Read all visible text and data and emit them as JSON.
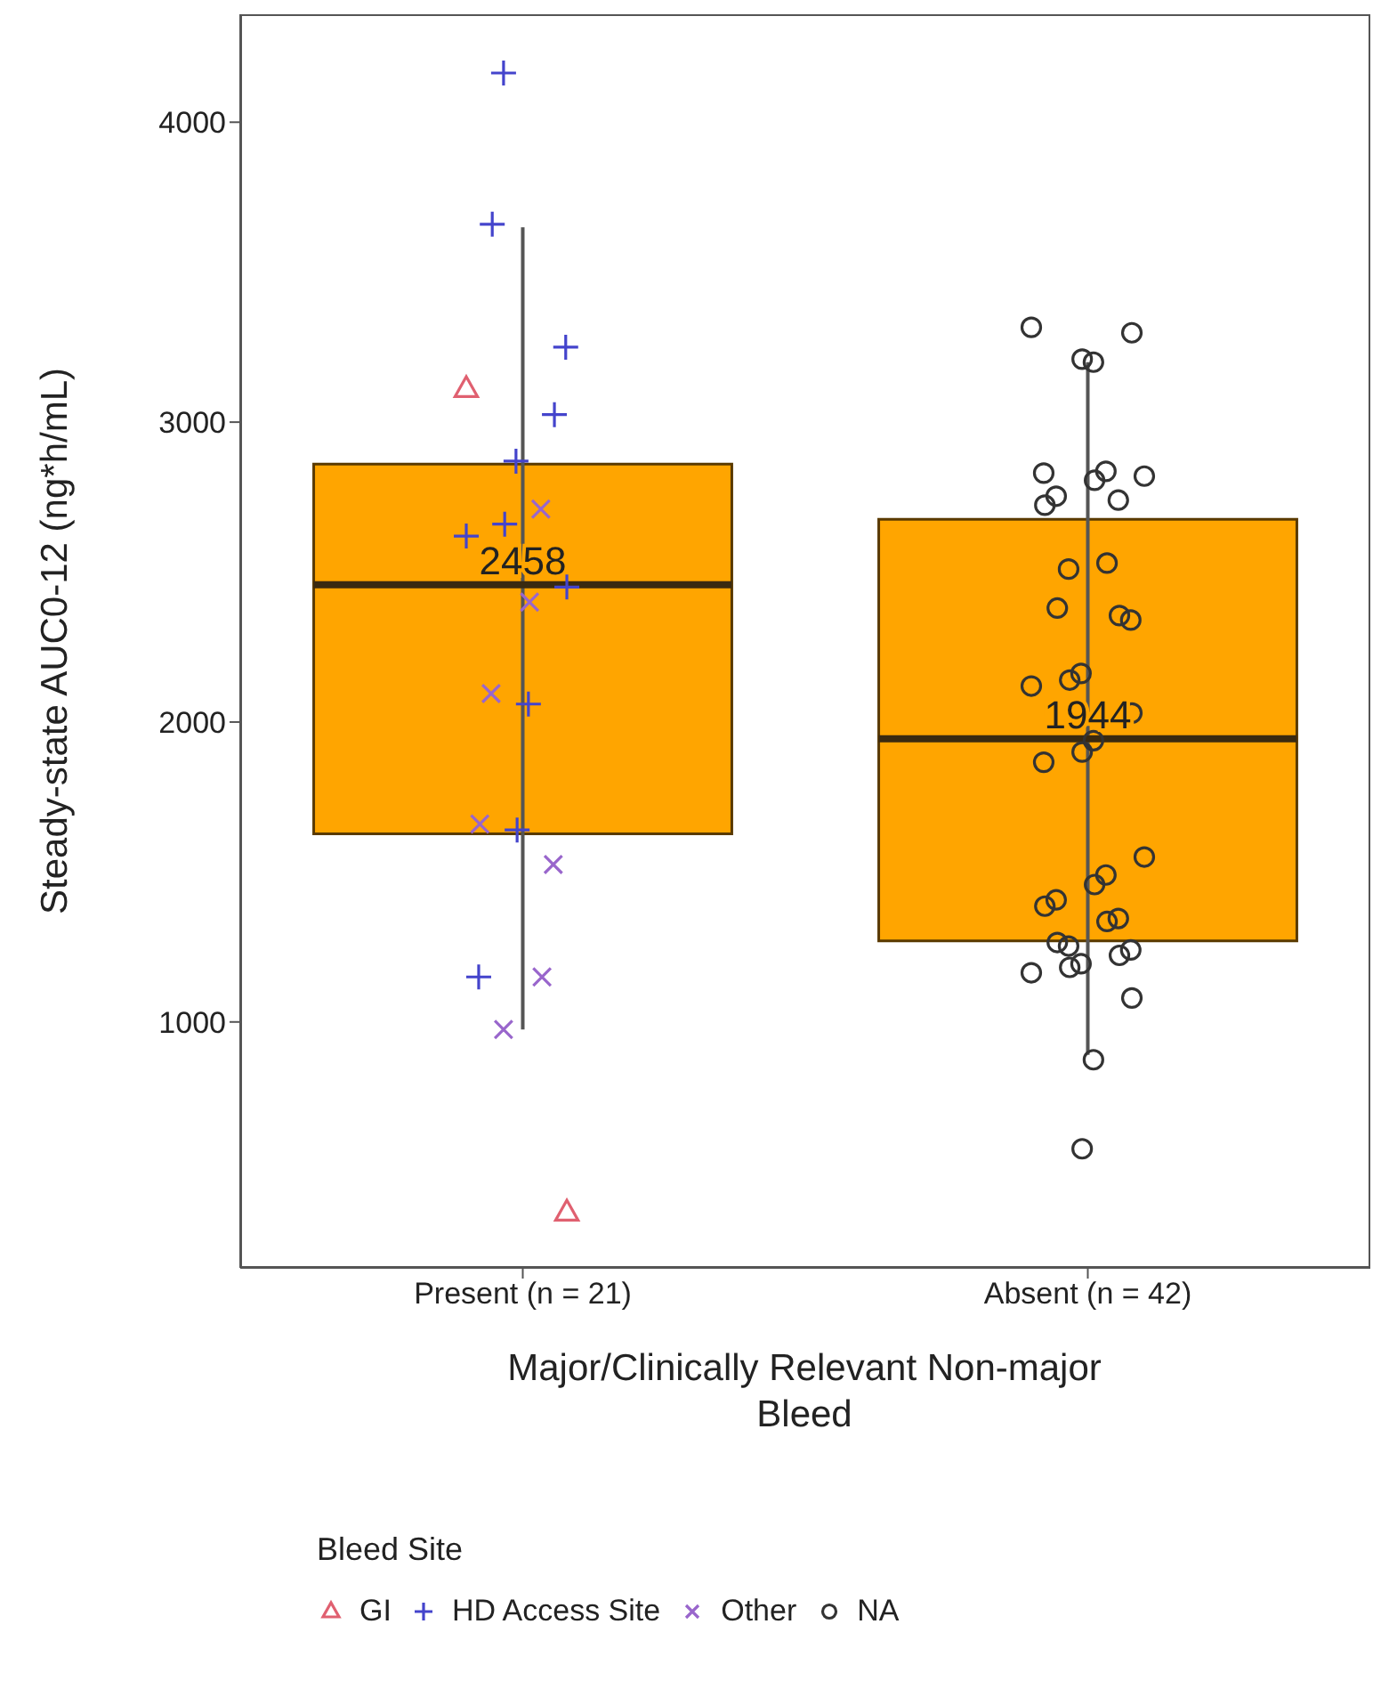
{
  "chart_data": {
    "type": "box",
    "categories": [
      "Present (n = 21)",
      "Absent (n = 42)"
    ],
    "boxes": [
      {
        "low": 975,
        "q1": 1627,
        "median": 2458,
        "q3": 2860,
        "high": 3650
      },
      {
        "low": 890,
        "q1": 1270,
        "median": 1944,
        "q3": 2676,
        "high": 3200
      }
    ],
    "color": "#ffa500",
    "series": [
      {
        "type": "scatter",
        "name": "GI",
        "color": "#e06070",
        "marker": "triangle",
        "x": [
          "Present (n = 21)",
          "Present (n = 21)"
        ],
        "values": [
          3110,
          364
        ]
      },
      {
        "type": "scatter",
        "name": "HD Access Site",
        "color": "#4444cc",
        "marker": "cross",
        "x": [
          "Present (n = 21)",
          "Present (n = 21)",
          "Present (n = 21)",
          "Present (n = 21)",
          "Present (n = 21)",
          "Present (n = 21)",
          "Present (n = 21)",
          "Present (n = 21)",
          "Present (n = 21)",
          "Present (n = 21)",
          "Present (n = 21)"
        ],
        "values": [
          4164,
          3660,
          3250,
          3025,
          2870,
          2660,
          2620,
          2450,
          2060,
          1640,
          1150
        ]
      },
      {
        "type": "scatter",
        "name": "Other",
        "color": "#9966cc",
        "marker": "x",
        "x": [
          "Present (n = 21)",
          "Present (n = 21)",
          "Present (n = 21)",
          "Present (n = 21)",
          "Present (n = 21)",
          "Present (n = 21)",
          "Present (n = 21)"
        ],
        "values": [
          2710,
          2400,
          2095,
          1660,
          1525,
          1150,
          975
        ]
      },
      {
        "type": "scatter",
        "name": "NA",
        "color": "#333333",
        "marker": "circle",
        "x": [
          "Absent (n = 42)",
          "Absent (n = 42)",
          "Absent (n = 42)",
          "Absent (n = 42)",
          "Absent (n = 42)",
          "Absent (n = 42)",
          "Absent (n = 42)",
          "Absent (n = 42)",
          "Absent (n = 42)",
          "Absent (n = 42)",
          "Absent (n = 42)",
          "Absent (n = 42)",
          "Absent (n = 42)",
          "Absent (n = 42)",
          "Absent (n = 42)",
          "Absent (n = 42)",
          "Absent (n = 42)",
          "Absent (n = 42)",
          "Absent (n = 42)",
          "Absent (n = 42)",
          "Absent (n = 42)",
          "Absent (n = 42)",
          "Absent (n = 42)",
          "Absent (n = 42)",
          "Absent (n = 42)",
          "Absent (n = 42)",
          "Absent (n = 42)",
          "Absent (n = 42)",
          "Absent (n = 42)",
          "Absent (n = 42)",
          "Absent (n = 42)",
          "Absent (n = 42)",
          "Absent (n = 42)",
          "Absent (n = 42)",
          "Absent (n = 42)",
          "Absent (n = 42)",
          "Absent (n = 42)",
          "Absent (n = 42)",
          "Absent (n = 42)",
          "Absent (n = 42)"
        ],
        "values": [
          3316,
          3298,
          3200,
          3210,
          2830,
          2820,
          2836,
          2806,
          2753,
          2723,
          2740,
          2530,
          2510,
          2380,
          2340,
          2355,
          2162,
          2140,
          2120,
          2030,
          1938,
          1900,
          1866,
          1550,
          1490,
          1458,
          1407,
          1386,
          1345,
          1335,
          1253,
          1265,
          1240,
          1222,
          1194,
          1182,
          1164,
          1080,
          874,
          577
        ]
      }
    ],
    "ylim": [
      180,
      4360
    ],
    "yticks": [
      1000,
      2000,
      3000,
      4000
    ],
    "grid": false,
    "ylabel": "Steady-state AUC0-12 (ng*h/mL)",
    "xlabel": "Major/Clinically Relevant Non-major Bleed",
    "legend_title": "Bleed Site",
    "legend": "bottom left",
    "annotations": [
      {
        "text": "2458",
        "x": "Present (n = 21)",
        "y": 2458
      },
      {
        "text": "1944",
        "x": "Absent (n = 42)",
        "y": 1944
      }
    ]
  }
}
